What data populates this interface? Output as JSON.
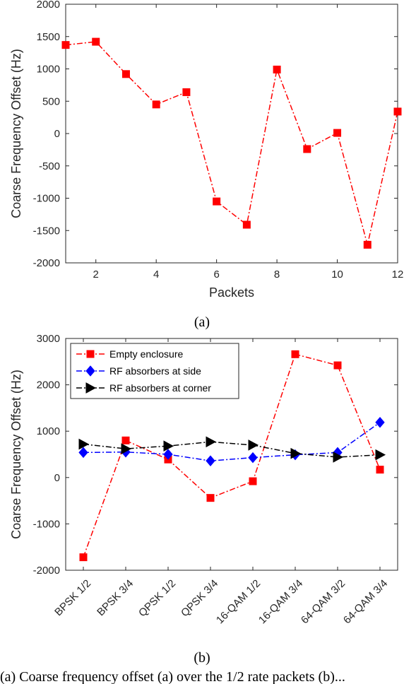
{
  "chart_data": [
    {
      "type": "line",
      "caption": "(a)",
      "xlabel": "Packets",
      "ylabel": "Coarse Frequency Offset (Hz)",
      "xlim": [
        1,
        12
      ],
      "ylim": [
        -2000,
        2000
      ],
      "xticks": [
        2,
        4,
        6,
        8,
        10,
        12
      ],
      "yticks": [
        -2000,
        -1500,
        -1000,
        -500,
        0,
        500,
        1000,
        1500,
        2000
      ],
      "grid": false,
      "series": [
        {
          "color": "#ff0000",
          "marker": "square",
          "line": "dash-dot",
          "x": [
            1,
            2,
            3,
            4,
            5,
            6,
            7,
            8,
            9,
            10,
            11,
            12
          ],
          "y": [
            1370,
            1420,
            920,
            450,
            640,
            -1050,
            -1410,
            990,
            -240,
            10,
            -1720,
            340
          ]
        }
      ]
    },
    {
      "type": "line",
      "caption": "(b)",
      "xlabel": "",
      "ylabel": "Coarse Frequency Offset (Hz)",
      "ylim": [
        -2000,
        3000
      ],
      "yticks": [
        -2000,
        -1000,
        0,
        1000,
        2000,
        3000
      ],
      "categories": [
        "BPSK 1/2",
        "BPSK 3/4",
        "QPSK 1/2",
        "QPSK 3/4",
        "16-QAM 1/2",
        "16-QAM 3/4",
        "64-QAM 3/2",
        "64-QAM 3/4"
      ],
      "grid": false,
      "legend_position": "top-left",
      "series": [
        {
          "name": "Empty enclosure",
          "color": "#ff0000",
          "marker": "square",
          "line": "dash-dot",
          "values": [
            -1720,
            800,
            390,
            -440,
            -80,
            2660,
            2420,
            170
          ]
        },
        {
          "name": "RF absorbers at side",
          "color": "#0000ff",
          "marker": "diamond",
          "line": "dash-dot",
          "values": [
            540,
            550,
            500,
            360,
            430,
            490,
            540,
            1190
          ]
        },
        {
          "name": "RF absorbers at corner",
          "color": "#000000",
          "marker": "triangle-right",
          "line": "dash-dot",
          "values": [
            720,
            620,
            680,
            770,
            700,
            520,
            440,
            490
          ]
        }
      ]
    }
  ],
  "footer_text": "(a) Coarse frequency offset (a) over the 1/2 rate packets (b)..."
}
